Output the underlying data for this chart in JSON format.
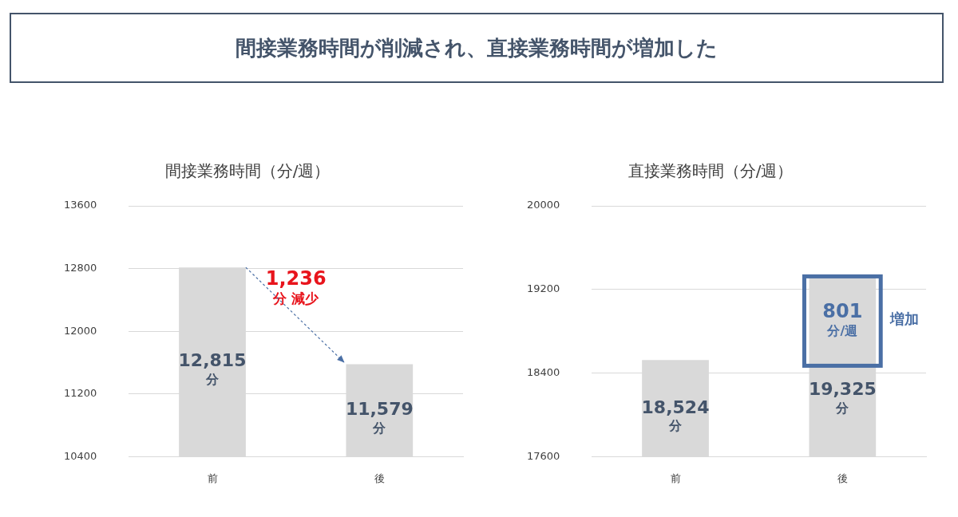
{
  "chart_data": [
    {
      "type": "other",
      "title": "間接業務時間が削減され、直接業務時間が増加した"
    },
    {
      "type": "bar",
      "title": "間接業務時間（分/週）",
      "categories": [
        "前",
        "後"
      ],
      "values": [
        12815,
        11579
      ],
      "color": "#d9d9d9",
      "ylim": [
        10400,
        13600
      ],
      "yticks": [
        10400,
        11200,
        12000,
        12800,
        13600
      ],
      "grid": "y",
      "value_labels": [
        "12,815\n分",
        "11,579\n分"
      ],
      "annotations": [
        "1,236\n分 減少"
      ]
    },
    {
      "type": "bar",
      "title": "直接業務時間（分/週）",
      "categories": [
        "前",
        "後"
      ],
      "values": [
        18524,
        19325
      ],
      "color": "#d9d9d9",
      "ylim": [
        17600,
        20000
      ],
      "yticks": [
        17600,
        18400,
        19200,
        20000
      ],
      "grid": "y",
      "value_labels": [
        "18,524\n分",
        "19,325\n分"
      ],
      "annotations": [
        "801\n分/週",
        "増加"
      ]
    }
  ]
}
